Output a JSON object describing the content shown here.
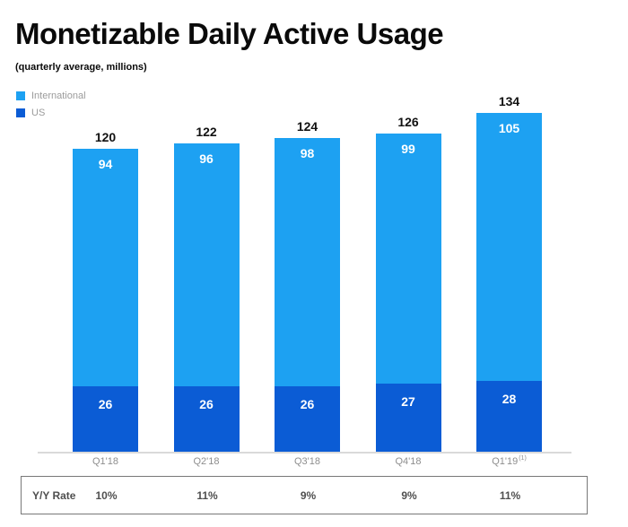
{
  "header": {
    "title": "Monetizable Daily Active Usage",
    "subtitle": "(quarterly average, millions)"
  },
  "legend": [
    {
      "label": "International",
      "color": "#1DA1F2"
    },
    {
      "label": "US",
      "color": "#0B5CD5"
    }
  ],
  "chart_data": {
    "type": "bar",
    "stacked": true,
    "title": "Monetizable Daily Active Usage",
    "subtitle": "(quarterly average, millions)",
    "categories": [
      "Q1'18",
      "Q2'18",
      "Q3'18",
      "Q4'18",
      "Q1'19"
    ],
    "category_note": {
      "index": 4,
      "marker": "(1)"
    },
    "series": [
      {
        "name": "US",
        "color": "#0B5CD5",
        "values": [
          26,
          26,
          26,
          27,
          28
        ]
      },
      {
        "name": "International",
        "color": "#1DA1F2",
        "values": [
          94,
          96,
          98,
          99,
          105
        ]
      }
    ],
    "totals": [
      120,
      122,
      124,
      126,
      134
    ],
    "ylim": [
      0,
      140
    ],
    "grid": false,
    "legend_position": "top-left",
    "value_labels": "inside-top-and-above"
  },
  "footer": {
    "label": "Y/Y Rate",
    "values": [
      "10%",
      "11%",
      "9%",
      "9%",
      "11%"
    ]
  }
}
